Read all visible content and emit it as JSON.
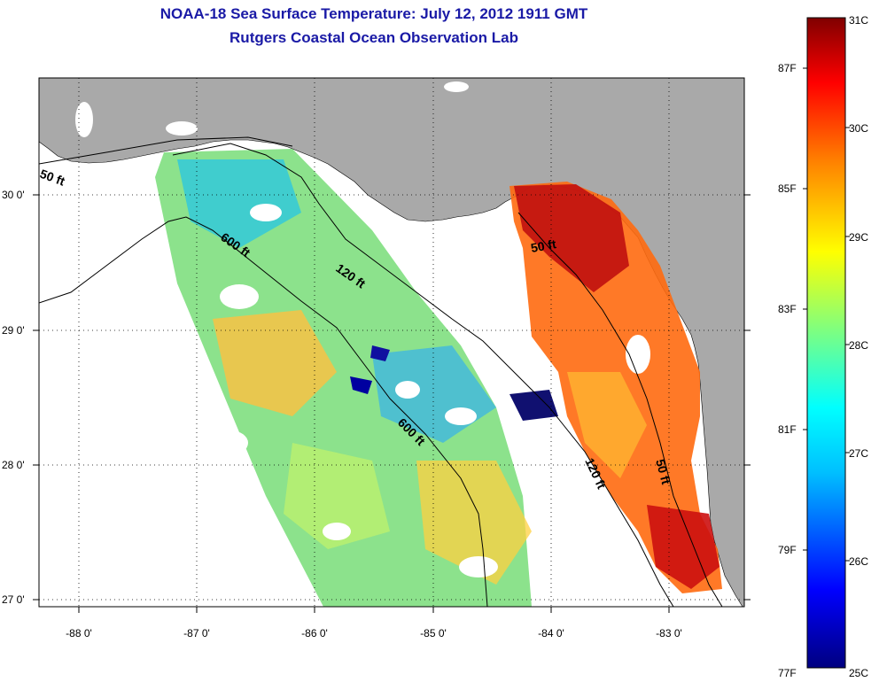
{
  "title": {
    "line1": "NOAA-18 Sea Surface Temperature:  July 12, 2012 1911 GMT",
    "line2": "Rutgers Coastal Ocean Observation Lab"
  },
  "map": {
    "lat_labels": [
      "30 0'",
      "29 0'",
      "28 0'",
      "27 0'"
    ],
    "lon_labels": [
      "-88 0'",
      "-87 0'",
      "-86 0'",
      "-85 0'",
      "-84 0'",
      "-83 0'"
    ],
    "lon_range": [
      -88.35,
      -82.35
    ],
    "lat_range": [
      26.97,
      30.85
    ],
    "contour_labels": {
      "west_50ft": "50 ft",
      "west_600ft": "600 ft",
      "mid_120ft": "120 ft",
      "south_600ft": "600 ft",
      "east_50ft": "50 ft",
      "east_120ft": "120 ft",
      "south_50ft": "50 ft"
    },
    "colors": {
      "land": "#a9a9a9",
      "cloud": "#ffffff",
      "contour": "#000000"
    }
  },
  "colorbar": {
    "celsius_labels": [
      "31C",
      "30C",
      "29C",
      "28C",
      "27C",
      "26C",
      "25C"
    ],
    "fahrenheit_labels": [
      "87F",
      "85F",
      "83F",
      "81F",
      "79F",
      "77F"
    ],
    "range_c": [
      25,
      31
    ],
    "stops": [
      "#000080",
      "#0000ff",
      "#00bfff",
      "#00ffff",
      "#7fff7f",
      "#ffff00",
      "#ff8000",
      "#ff0000",
      "#800000"
    ]
  }
}
